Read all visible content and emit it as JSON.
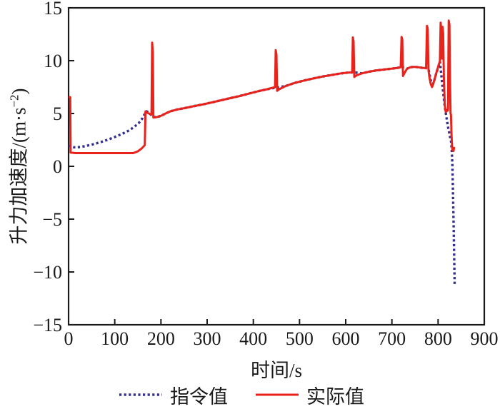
{
  "page": {
    "background": "#ffffff",
    "text_color": "#1a1a1a"
  },
  "chart_data": {
    "type": "line",
    "title": "",
    "xlabel": "时间/s",
    "ylabel": "升力加速度/(m·s⁻²)",
    "ylabel_parts": {
      "base": "升力加速度/(m·s",
      "sup": "−2",
      "close": ")"
    },
    "xlim": [
      0,
      900
    ],
    "ylim": [
      -15,
      15
    ],
    "x_ticks": [
      0,
      100,
      200,
      300,
      400,
      500,
      600,
      700,
      800,
      900
    ],
    "y_ticks": [
      -15,
      -10,
      -5,
      0,
      5,
      10,
      15
    ],
    "grid": false,
    "legend_position": "below-axis",
    "axis_color": "#1a1a1a",
    "series": [
      {
        "key": "command",
        "name": "指令值",
        "color": "#32318f",
        "style": "dotted",
        "points": [
          [
            0,
            1.95
          ],
          [
            12,
            1.8
          ],
          [
            25,
            1.82
          ],
          [
            40,
            1.95
          ],
          [
            55,
            2.1
          ],
          [
            70,
            2.3
          ],
          [
            85,
            2.52
          ],
          [
            100,
            2.78
          ],
          [
            115,
            3.05
          ],
          [
            130,
            3.38
          ],
          [
            142,
            3.72
          ],
          [
            152,
            4.1
          ],
          [
            160,
            4.55
          ],
          [
            166,
            5.05
          ],
          [
            169,
            5.2
          ],
          [
            173,
            5.1
          ],
          [
            178,
            4.9
          ],
          [
            183,
            4.68
          ],
          [
            190,
            4.65
          ],
          [
            200,
            4.78
          ],
          [
            210,
            5.0
          ],
          [
            220,
            5.2
          ],
          [
            235,
            5.38
          ],
          [
            250,
            5.5
          ],
          [
            270,
            5.68
          ],
          [
            290,
            5.85
          ],
          [
            310,
            6.05
          ],
          [
            330,
            6.25
          ],
          [
            350,
            6.45
          ],
          [
            370,
            6.65
          ],
          [
            390,
            6.88
          ],
          [
            410,
            7.1
          ],
          [
            430,
            7.3
          ],
          [
            450,
            7.45
          ],
          [
            470,
            7.6
          ],
          [
            490,
            7.9
          ],
          [
            510,
            8.12
          ],
          [
            530,
            8.32
          ],
          [
            550,
            8.5
          ],
          [
            570,
            8.65
          ],
          [
            590,
            8.8
          ],
          [
            605,
            8.87
          ],
          [
            618,
            8.9
          ],
          [
            635,
            8.8
          ],
          [
            650,
            8.95
          ],
          [
            665,
            9.07
          ],
          [
            680,
            9.15
          ],
          [
            695,
            9.22
          ],
          [
            710,
            9.3
          ],
          [
            719,
            9.38
          ],
          [
            726,
            9.32
          ],
          [
            733,
            9.25
          ],
          [
            740,
            9.38
          ],
          [
            748,
            9.42
          ],
          [
            758,
            9.38
          ],
          [
            766,
            9.32
          ],
          [
            774,
            9.3
          ],
          [
            779,
            9.2
          ],
          [
            782,
            8.6
          ],
          [
            787,
            7.55
          ],
          [
            791,
            8.0
          ],
          [
            796,
            8.8
          ],
          [
            801,
            9.5
          ],
          [
            804,
            9.9
          ],
          [
            807,
            8.6
          ],
          [
            810,
            7.4
          ],
          [
            813,
            6.2
          ],
          [
            816,
            5.2
          ],
          [
            819,
            4.4
          ],
          [
            822,
            3.6
          ],
          [
            825,
            2.95
          ],
          [
            828,
            2.4
          ],
          [
            829.5,
            1.6
          ],
          [
            830.8,
            0.2
          ],
          [
            831.8,
            -1.6
          ],
          [
            832.8,
            -3.6
          ],
          [
            833.6,
            -5.6
          ],
          [
            834.4,
            -7.6
          ],
          [
            835.2,
            -9.6
          ],
          [
            835.8,
            -11.2
          ]
        ]
      },
      {
        "key": "actual",
        "name": "实际值",
        "color": "#e8231c",
        "style": "solid",
        "points": [
          [
            2,
            6.55
          ],
          [
            3.5,
            6.55
          ],
          [
            4.5,
            1.3
          ],
          [
            15,
            1.25
          ],
          [
            140,
            1.25
          ],
          [
            150,
            1.42
          ],
          [
            158,
            1.68
          ],
          [
            165,
            2.0
          ],
          [
            166.5,
            5.2
          ],
          [
            170,
            5.08
          ],
          [
            176,
            4.95
          ],
          [
            179.5,
            4.9
          ],
          [
            181,
            11.7
          ],
          [
            182.5,
            10.8
          ],
          [
            183.5,
            4.62
          ],
          [
            190,
            4.65
          ],
          [
            200,
            4.78
          ],
          [
            210,
            5.0
          ],
          [
            220,
            5.2
          ],
          [
            235,
            5.38
          ],
          [
            250,
            5.5
          ],
          [
            270,
            5.68
          ],
          [
            290,
            5.85
          ],
          [
            310,
            6.05
          ],
          [
            330,
            6.25
          ],
          [
            350,
            6.45
          ],
          [
            370,
            6.65
          ],
          [
            390,
            6.88
          ],
          [
            410,
            7.1
          ],
          [
            430,
            7.3
          ],
          [
            447,
            7.5
          ],
          [
            448.5,
            11.0
          ],
          [
            450,
            10.6
          ],
          [
            451.5,
            7.15
          ],
          [
            456,
            7.3
          ],
          [
            470,
            7.6
          ],
          [
            490,
            7.9
          ],
          [
            510,
            8.12
          ],
          [
            530,
            8.32
          ],
          [
            550,
            8.5
          ],
          [
            570,
            8.65
          ],
          [
            590,
            8.8
          ],
          [
            605,
            8.87
          ],
          [
            614,
            8.9
          ],
          [
            615.5,
            12.2
          ],
          [
            617,
            11.8
          ],
          [
            618.5,
            8.45
          ],
          [
            623,
            8.6
          ],
          [
            635,
            8.8
          ],
          [
            650,
            8.95
          ],
          [
            665,
            9.07
          ],
          [
            680,
            9.15
          ],
          [
            695,
            9.22
          ],
          [
            710,
            9.3
          ],
          [
            719,
            9.38
          ],
          [
            721,
            12.25
          ],
          [
            722.5,
            12.0
          ],
          [
            724,
            8.55
          ],
          [
            728,
            8.9
          ],
          [
            733,
            9.25
          ],
          [
            740,
            9.38
          ],
          [
            748,
            9.42
          ],
          [
            758,
            9.38
          ],
          [
            766,
            9.32
          ],
          [
            774,
            9.3
          ],
          [
            776,
            13.3
          ],
          [
            777.5,
            13.0
          ],
          [
            779,
            9.2
          ],
          [
            781,
            8.5
          ],
          [
            784,
            7.8
          ],
          [
            787,
            7.5
          ],
          [
            790,
            7.9
          ],
          [
            794,
            8.5
          ],
          [
            798,
            9.1
          ],
          [
            802,
            9.7
          ],
          [
            804,
            9.95
          ],
          [
            805.5,
            13.6
          ],
          [
            807,
            12.8
          ],
          [
            808,
            10.2
          ],
          [
            809.5,
            13.2
          ],
          [
            811,
            12.6
          ],
          [
            812.5,
            8.5
          ],
          [
            814.5,
            5.8
          ],
          [
            816.5,
            5.15
          ],
          [
            818.5,
            5.2
          ],
          [
            820,
            5.35
          ],
          [
            821.5,
            5.3
          ],
          [
            823,
            13.8
          ],
          [
            824.5,
            13.4
          ],
          [
            826,
            7.5
          ],
          [
            827,
            5.0
          ],
          [
            828,
            4.85
          ],
          [
            829,
            3.0
          ],
          [
            830.5,
            1.7
          ],
          [
            832,
            1.48
          ],
          [
            833.5,
            1.45
          ],
          [
            834.5,
            1.75
          ]
        ]
      }
    ]
  }
}
